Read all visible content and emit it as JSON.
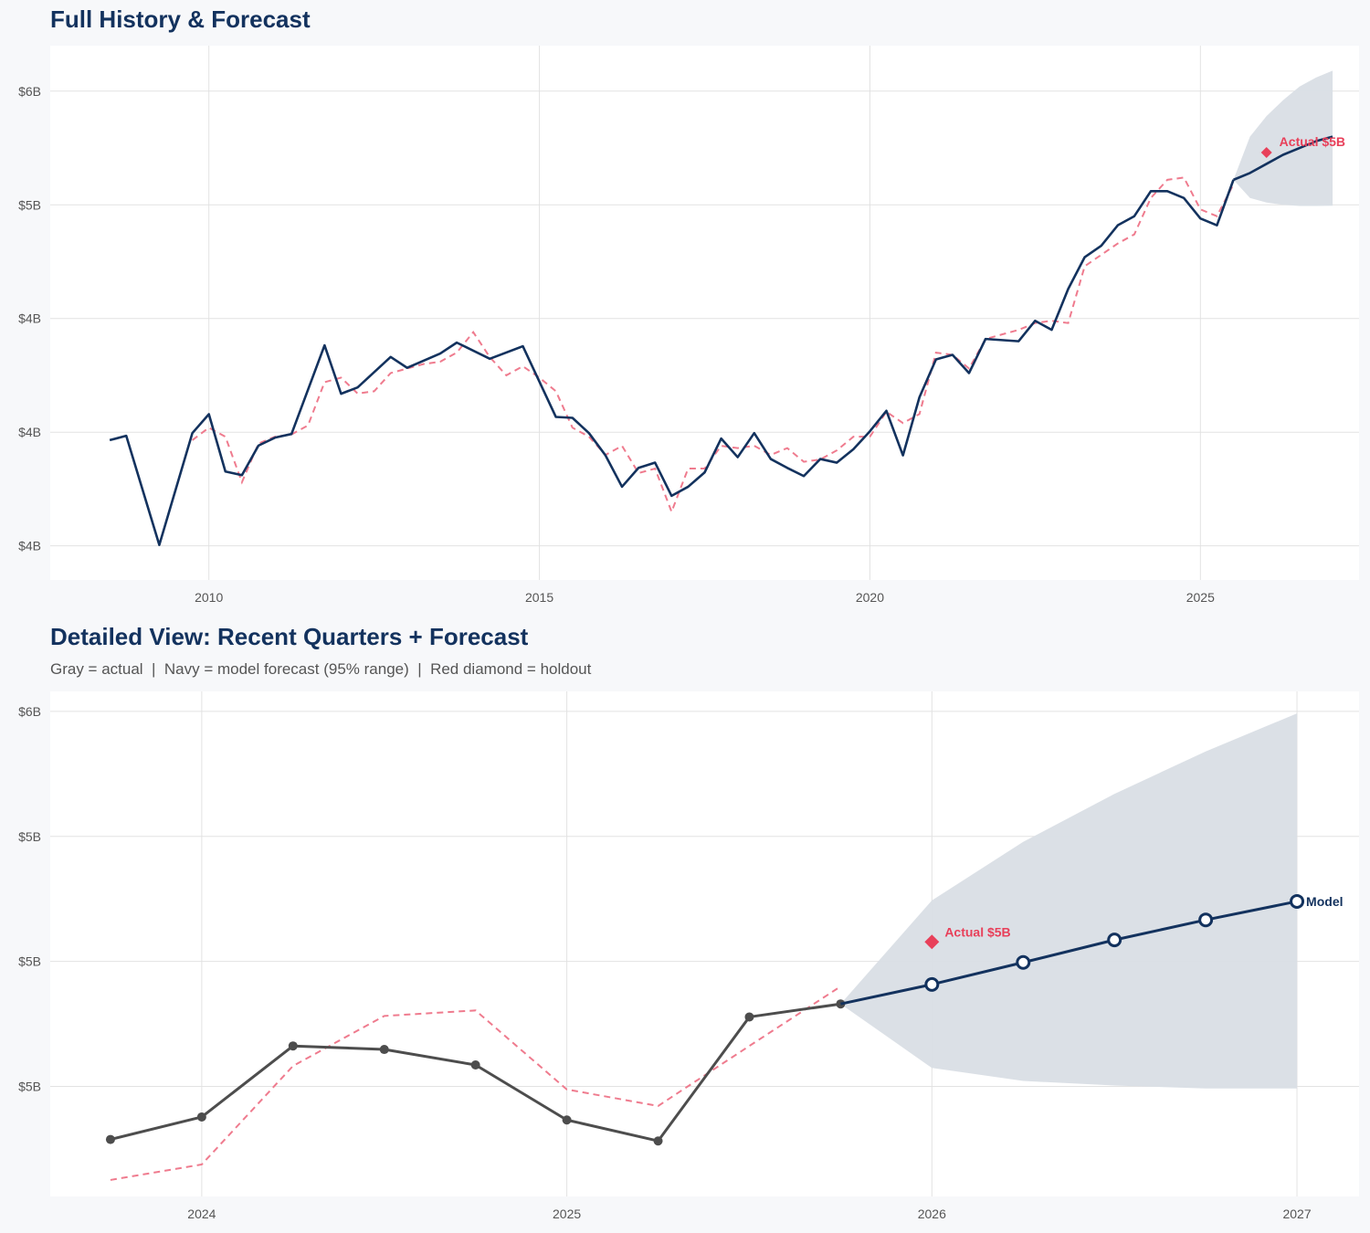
{
  "colors": {
    "navy": "#13325e",
    "actual_gray": "#4d4d4d",
    "holdout_red": "#e8405a",
    "backtest_dash": "#ef7b8e",
    "band": "#d9dee5",
    "grid": "#e2e2e2"
  },
  "chart_data": [
    {
      "type": "line",
      "title": "Full History & Forecast",
      "xlim": [
        2007.6,
        2027.4
      ],
      "ylim": [
        3.35,
        5.7
      ],
      "x_ticks": [
        2010,
        2015,
        2020,
        2025
      ],
      "x_tick_labels": [
        "2010",
        "2015",
        "2020",
        "2025"
      ],
      "y_ticks": [
        3.5,
        4.0,
        4.5,
        5.0,
        5.5
      ],
      "y_tick_labels": [
        "$4B",
        "$4B",
        "$4B",
        "$5B",
        "$6B"
      ],
      "grid": true,
      "series": [
        {
          "role": "actual",
          "style": "navy solid",
          "points": [
            [
              2008.5,
              3.965
            ],
            [
              2008.75,
              3.984
            ],
            [
              2009.25,
              3.504
            ],
            [
              2009.75,
              3.996
            ],
            [
              2010.0,
              4.079
            ],
            [
              2010.25,
              3.827
            ],
            [
              2010.5,
              3.811
            ],
            [
              2010.75,
              3.941
            ],
            [
              2011.0,
              3.976
            ],
            [
              2011.25,
              3.992
            ],
            [
              2011.75,
              4.382
            ],
            [
              2012.0,
              4.169
            ],
            [
              2012.25,
              4.197
            ],
            [
              2012.75,
              4.331
            ],
            [
              2013.0,
              4.283
            ],
            [
              2013.5,
              4.346
            ],
            [
              2013.75,
              4.394
            ],
            [
              2014.25,
              4.323
            ],
            [
              2014.75,
              4.378
            ],
            [
              2015.25,
              4.067
            ],
            [
              2015.5,
              4.063
            ],
            [
              2015.75,
              3.996
            ],
            [
              2016.0,
              3.898
            ],
            [
              2016.25,
              3.76
            ],
            [
              2016.5,
              3.843
            ],
            [
              2016.75,
              3.866
            ],
            [
              2017.0,
              3.72
            ],
            [
              2017.25,
              3.76
            ],
            [
              2017.5,
              3.823
            ],
            [
              2017.75,
              3.972
            ],
            [
              2018.0,
              3.89
            ],
            [
              2018.25,
              3.996
            ],
            [
              2018.5,
              3.882
            ],
            [
              2018.75,
              3.843
            ],
            [
              2019.0,
              3.807
            ],
            [
              2019.25,
              3.882
            ],
            [
              2019.5,
              3.866
            ],
            [
              2019.75,
              3.925
            ],
            [
              2020.0,
              4.004
            ],
            [
              2020.25,
              4.094
            ],
            [
              2020.5,
              3.898
            ],
            [
              2020.75,
              4.154
            ],
            [
              2021.0,
              4.32
            ],
            [
              2021.25,
              4.34
            ],
            [
              2021.5,
              4.26
            ],
            [
              2021.75,
              4.41
            ],
            [
              2022.25,
              4.4
            ],
            [
              2022.5,
              4.49
            ],
            [
              2022.75,
              4.45
            ],
            [
              2023.0,
              4.63
            ],
            [
              2023.25,
              4.77
            ],
            [
              2023.5,
              4.82
            ],
            [
              2023.75,
              4.91
            ],
            [
              2024.0,
              4.95
            ],
            [
              2024.25,
              5.06
            ],
            [
              2024.5,
              5.06
            ],
            [
              2024.75,
              5.03
            ],
            [
              2025.0,
              4.94
            ],
            [
              2025.25,
              4.91
            ],
            [
              2025.5,
              5.11
            ]
          ]
        },
        {
          "role": "backtest",
          "style": "red dashed",
          "points": [
            [
              2009.75,
              3.965
            ],
            [
              2010.0,
              4.02
            ],
            [
              2010.25,
              3.98
            ],
            [
              2010.5,
              3.78
            ],
            [
              2010.75,
              3.95
            ],
            [
              2011.0,
              3.98
            ],
            [
              2011.25,
              3.99
            ],
            [
              2011.5,
              4.03
            ],
            [
              2011.75,
              4.22
            ],
            [
              2012.0,
              4.24
            ],
            [
              2012.25,
              4.17
            ],
            [
              2012.5,
              4.18
            ],
            [
              2012.75,
              4.26
            ],
            [
              2013.0,
              4.28
            ],
            [
              2013.25,
              4.3
            ],
            [
              2013.5,
              4.31
            ],
            [
              2013.75,
              4.35
            ],
            [
              2014.0,
              4.44
            ],
            [
              2014.25,
              4.33
            ],
            [
              2014.5,
              4.25
            ],
            [
              2014.75,
              4.29
            ],
            [
              2015.0,
              4.24
            ],
            [
              2015.25,
              4.18
            ],
            [
              2015.5,
              4.02
            ],
            [
              2015.75,
              3.98
            ],
            [
              2016.0,
              3.9
            ],
            [
              2016.25,
              3.94
            ],
            [
              2016.5,
              3.82
            ],
            [
              2016.75,
              3.84
            ],
            [
              2017.0,
              3.65
            ],
            [
              2017.25,
              3.84
            ],
            [
              2017.5,
              3.84
            ],
            [
              2017.75,
              3.94
            ],
            [
              2018.0,
              3.93
            ],
            [
              2018.25,
              3.94
            ],
            [
              2018.5,
              3.9
            ],
            [
              2018.75,
              3.93
            ],
            [
              2019.0,
              3.87
            ],
            [
              2019.25,
              3.88
            ],
            [
              2019.5,
              3.92
            ],
            [
              2019.75,
              3.98
            ],
            [
              2020.0,
              3.98
            ],
            [
              2020.25,
              4.09
            ],
            [
              2020.5,
              4.04
            ],
            [
              2020.75,
              4.08
            ],
            [
              2021.0,
              4.35
            ],
            [
              2021.25,
              4.34
            ],
            [
              2021.5,
              4.28
            ],
            [
              2021.75,
              4.41
            ],
            [
              2022.0,
              4.43
            ],
            [
              2022.25,
              4.45
            ],
            [
              2022.5,
              4.48
            ],
            [
              2022.75,
              4.49
            ],
            [
              2023.0,
              4.48
            ],
            [
              2023.25,
              4.73
            ],
            [
              2023.5,
              4.78
            ],
            [
              2023.75,
              4.83
            ],
            [
              2024.0,
              4.87
            ],
            [
              2024.25,
              5.03
            ],
            [
              2024.5,
              5.11
            ],
            [
              2024.75,
              5.12
            ],
            [
              2025.0,
              4.98
            ],
            [
              2025.25,
              4.95
            ],
            [
              2025.5,
              5.09
            ]
          ]
        },
        {
          "role": "forecast",
          "style": "navy solid",
          "points": [
            [
              2025.5,
              5.11
            ],
            [
              2025.75,
              5.14
            ],
            [
              2026.0,
              5.18
            ],
            [
              2026.25,
              5.22
            ],
            [
              2026.5,
              5.25
            ],
            [
              2026.75,
              5.28
            ],
            [
              2027.0,
              5.3
            ]
          ]
        }
      ],
      "band_95": {
        "x": [
          2025.5,
          2025.75,
          2026.0,
          2026.25,
          2026.5,
          2026.75,
          2027.0
        ],
        "upper": [
          5.11,
          5.3,
          5.39,
          5.46,
          5.52,
          5.56,
          5.59
        ],
        "lower": [
          5.11,
          5.03,
          5.01,
          5.0,
          4.995,
          4.995,
          4.996
        ]
      },
      "holdout": {
        "x": 2026.0,
        "y": 5.23,
        "label": "Actual $5B"
      }
    },
    {
      "type": "line",
      "title": "Detailed View: Recent Quarters + Forecast",
      "subtitle": "Gray = actual  |  Navy = model forecast (95% range)  |  Red diamond = holdout",
      "xlim": [
        2023.585,
        2027.17
      ],
      "ylim": [
        4.53,
        5.54
      ],
      "x_ticks": [
        2024,
        2025,
        2026,
        2027
      ],
      "x_tick_labels": [
        "2024",
        "2025",
        "2026",
        "2027"
      ],
      "y_ticks": [
        4.75,
        5.0,
        5.25,
        5.5
      ],
      "y_tick_labels": [
        "$5B",
        "$5B",
        "$5B",
        "$6B"
      ],
      "grid": true,
      "series": [
        {
          "role": "actual",
          "style": "gray solid with markers",
          "points": [
            [
              2023.75,
              4.644
            ],
            [
              2024.0,
              4.689
            ],
            [
              2024.25,
              4.831
            ],
            [
              2024.5,
              4.824
            ],
            [
              2024.75,
              4.793
            ],
            [
              2025.0,
              4.683
            ],
            [
              2025.25,
              4.641
            ],
            [
              2025.5,
              4.889
            ],
            [
              2025.75,
              4.915
            ]
          ]
        },
        {
          "role": "backtest",
          "style": "red dashed",
          "points": [
            [
              2023.75,
              4.563
            ],
            [
              2024.0,
              4.594
            ],
            [
              2024.25,
              4.791
            ],
            [
              2024.5,
              4.891
            ],
            [
              2024.75,
              4.902
            ],
            [
              2025.0,
              4.744
            ],
            [
              2025.25,
              4.711
            ],
            [
              2025.5,
              4.831
            ],
            [
              2025.75,
              4.95
            ]
          ]
        },
        {
          "role": "forecast",
          "name": "Model",
          "style": "navy solid with open markers",
          "points": [
            [
              2025.75,
              4.915
            ],
            [
              2026.0,
              4.954
            ],
            [
              2026.25,
              4.998
            ],
            [
              2026.5,
              5.043
            ],
            [
              2026.75,
              5.083
            ],
            [
              2027.0,
              5.12
            ]
          ]
        }
      ],
      "band_95": {
        "x": [
          2025.75,
          2026.0,
          2026.25,
          2026.5,
          2026.75,
          2027.0
        ],
        "upper": [
          4.915,
          5.122,
          5.239,
          5.335,
          5.42,
          5.496
        ],
        "lower": [
          4.915,
          4.787,
          4.761,
          4.752,
          4.746,
          4.746
        ]
      },
      "holdout": {
        "x": 2026.0,
        "y": 5.039,
        "label": "Actual $5B"
      },
      "end_label": "Model"
    }
  ]
}
